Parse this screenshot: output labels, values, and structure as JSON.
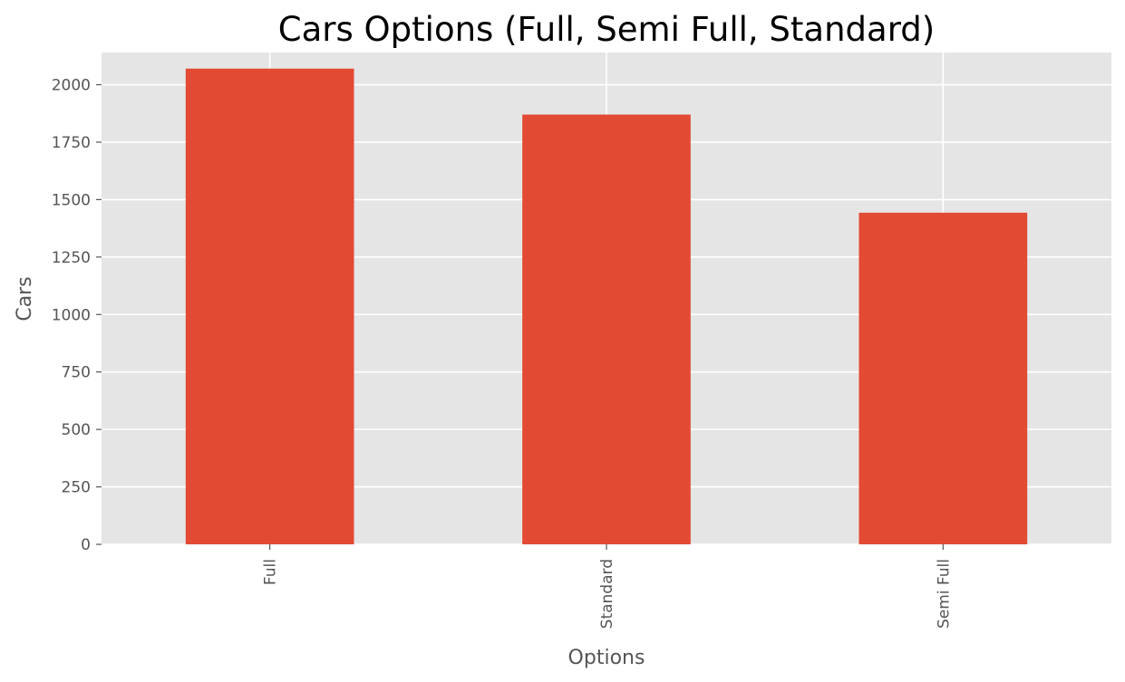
{
  "chart_data": {
    "type": "bar",
    "title": "Cars Options (Full, Semi Full, Standard)",
    "xlabel": "Options",
    "ylabel": "Cars",
    "categories": [
      "Full",
      "Standard",
      "Semi Full"
    ],
    "values": [
      2070,
      1870,
      1443
    ],
    "ylim": [
      0,
      2140
    ],
    "yticks": [
      0,
      250,
      500,
      750,
      1000,
      1250,
      1500,
      1750,
      2000
    ],
    "grid": true,
    "colors": {
      "bar": "#E24A33",
      "plot_background": "#E5E5E5",
      "grid": "#FFFFFF",
      "text": "#555555"
    }
  }
}
